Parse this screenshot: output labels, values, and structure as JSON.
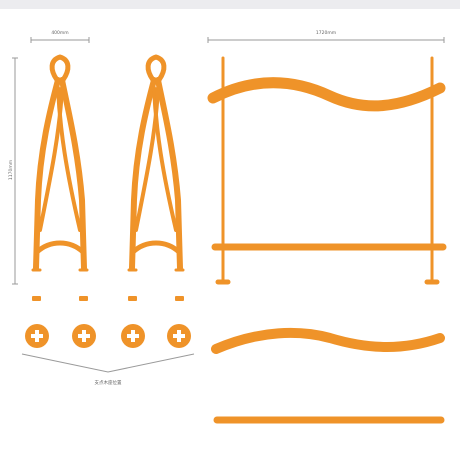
{
  "drawing": {
    "accent_color": "#ef9329",
    "dimension_line_color": "#9a9a9a",
    "dimensions": {
      "frame_width": "400mm",
      "frame_height": "1170mm",
      "panel_width": "1720mm"
    },
    "caption": "支点木座位置",
    "icons": {
      "frame": "a-frame-icon",
      "connector": "plus-connector-icon",
      "slat": "curved-slat-icon"
    }
  }
}
